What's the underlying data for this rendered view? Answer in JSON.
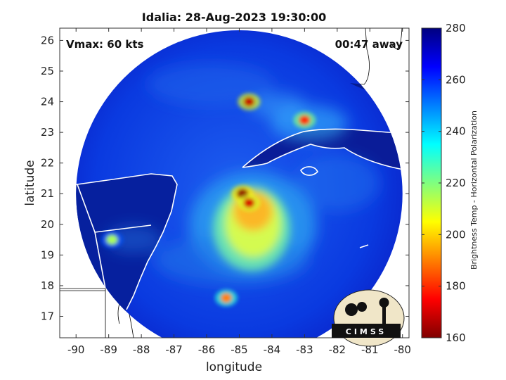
{
  "chart_data": {
    "type": "heatmap",
    "title": "Idalia: 28-Aug-2023 19:30:00",
    "xlabel": "longitude",
    "ylabel": "latitude",
    "xlim": [
      -90.5,
      -79.8
    ],
    "ylim": [
      16.3,
      26.4
    ],
    "xticks": [
      -90,
      -89,
      -88,
      -87,
      -86,
      -85,
      -84,
      -83,
      -82,
      -81,
      -80
    ],
    "yticks": [
      17,
      18,
      19,
      20,
      21,
      22,
      23,
      24,
      25,
      26
    ],
    "annotations": {
      "vmax": "Vmax: 60 kts",
      "time_away": "00:47 away"
    },
    "colorbar": {
      "label": "Brightness Temp - Horizontal Polarization",
      "range": [
        160,
        280
      ],
      "ticks": [
        160,
        180,
        200,
        220,
        240,
        260,
        280
      ],
      "colormap": "jet"
    },
    "swath": {
      "center_lon": -85.0,
      "center_lat": 21.0,
      "radius_deg": 5.0
    },
    "cold_cores": [
      {
        "lon": -84.9,
        "lat": 21.0,
        "min_bt": 162
      },
      {
        "lon": -84.7,
        "lat": 20.7,
        "min_bt": 170
      },
      {
        "lon": -84.7,
        "lat": 24.0,
        "min_bt": 168
      },
      {
        "lon": -83.0,
        "lat": 23.4,
        "min_bt": 180
      },
      {
        "lon": -85.4,
        "lat": 17.6,
        "min_bt": 190
      },
      {
        "lon": -88.9,
        "lat": 19.5,
        "min_bt": 215
      }
    ]
  },
  "logo": {
    "text": "CIMSS"
  },
  "colors": {
    "ocean_background": "#0a28d0",
    "land_outside_swath": "#00008b",
    "coastline": "#ffffff",
    "coastline_outside": "#000000"
  }
}
